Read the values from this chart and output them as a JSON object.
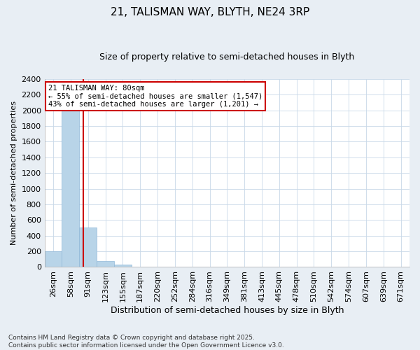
{
  "title": "21, TALISMAN WAY, BLYTH, NE24 3RP",
  "subtitle": "Size of property relative to semi-detached houses in Blyth",
  "xlabel": "Distribution of semi-detached houses by size in Blyth",
  "ylabel": "Number of semi-detached properties",
  "bar_color": "#b8d4e8",
  "bar_edge_color": "#90b8d8",
  "categories": [
    "26sqm",
    "58sqm",
    "91sqm",
    "123sqm",
    "155sqm",
    "187sqm",
    "220sqm",
    "252sqm",
    "284sqm",
    "316sqm",
    "349sqm",
    "381sqm",
    "413sqm",
    "445sqm",
    "478sqm",
    "510sqm",
    "542sqm",
    "574sqm",
    "607sqm",
    "639sqm",
    "671sqm"
  ],
  "values": [
    200,
    2000,
    500,
    80,
    30,
    0,
    0,
    0,
    0,
    0,
    0,
    0,
    0,
    0,
    0,
    0,
    0,
    0,
    0,
    0,
    0
  ],
  "ylim": [
    0,
    2400
  ],
  "yticks": [
    0,
    200,
    400,
    600,
    800,
    1000,
    1200,
    1400,
    1600,
    1800,
    2000,
    2200,
    2400
  ],
  "annotation_text_line1": "21 TALISMAN WAY: 80sqm",
  "annotation_text_line2": "← 55% of semi-detached houses are smaller (1,547)",
  "annotation_text_line3": "43% of semi-detached houses are larger (1,201) →",
  "annotation_box_color": "#ffffff",
  "annotation_border_color": "#cc0000",
  "vline_color": "#cc0000",
  "grid_color": "#c8d8e8",
  "plot_bg_color": "#ffffff",
  "fig_bg_color": "#e8eef4",
  "footer_text": "Contains HM Land Registry data © Crown copyright and database right 2025.\nContains public sector information licensed under the Open Government Licence v3.0.",
  "title_fontsize": 11,
  "subtitle_fontsize": 9,
  "vline_x": 1.72
}
